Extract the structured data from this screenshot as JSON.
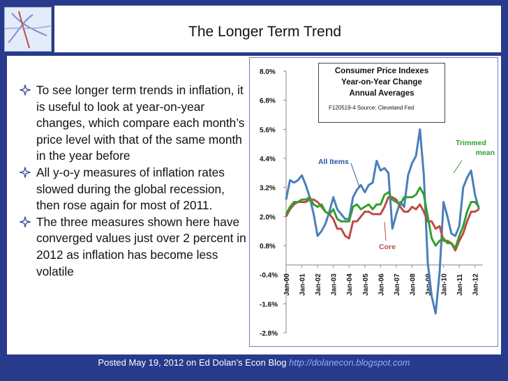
{
  "slide": {
    "title": "The Longer Term Trend",
    "bullets": [
      "To see longer term trends in inflation, it is useful to look at year-on-year changes, which compare each month’s price level with that of the same month in the year before",
      "All y-o-y measures of inflation rates slowed during the global recession, then rose again for most of 2011.",
      "The three measures shown here have converged values just over 2 percent in 2012 as inflation has become less volatile"
    ],
    "footer_text": "Posted May 19, 2012 on Ed Dolan’s Econ Blog",
    "footer_link": "http://dolanecon.blogspot.com"
  },
  "chart_data": {
    "type": "line",
    "title_lines": [
      "Consumer Price Indexes",
      "Year-on-Year Change",
      "Annual Averages"
    ],
    "source": "F120519-4 Source: Cleveland Fed",
    "y_ticks": [
      "8.0%",
      "6.8%",
      "5.6%",
      "4.4%",
      "3.2%",
      "2.0%",
      "0.8%",
      "-0.4%",
      "-1.6%",
      "-2.8%"
    ],
    "ylim": [
      -2.8,
      8.0
    ],
    "x_ticks": [
      "Jan-00",
      "Jan-01",
      "Jan-02",
      "Jan-03",
      "Jan-04",
      "Jan-05",
      "Jan-06",
      "Jan-07",
      "Jan-08",
      "Jan-09",
      "Jan-10",
      "Jan-11",
      "Jan-12"
    ],
    "series_labels": {
      "all_items": "All Items",
      "core": "Core",
      "trimmed_mean": [
        "Trimmed",
        "mean"
      ]
    },
    "series": [
      {
        "name": "All Items",
        "color": "#4a7ebb",
        "x": [
          2000.0,
          2000.25,
          2000.5,
          2000.75,
          2001.0,
          2001.25,
          2001.5,
          2001.75,
          2002.0,
          2002.25,
          2002.5,
          2002.75,
          2003.0,
          2003.25,
          2003.5,
          2003.75,
          2004.0,
          2004.25,
          2004.5,
          2004.75,
          2005.0,
          2005.25,
          2005.5,
          2005.75,
          2006.0,
          2006.25,
          2006.5,
          2006.75,
          2007.0,
          2007.25,
          2007.5,
          2007.75,
          2008.0,
          2008.25,
          2008.5,
          2008.75,
          2009.0,
          2009.25,
          2009.5,
          2009.75,
          2010.0,
          2010.25,
          2010.5,
          2010.75,
          2011.0,
          2011.25,
          2011.5,
          2011.75,
          2012.0,
          2012.25
        ],
        "values": [
          2.7,
          3.5,
          3.4,
          3.5,
          3.7,
          3.3,
          2.8,
          2.1,
          1.2,
          1.4,
          1.7,
          2.2,
          2.8,
          2.3,
          2.1,
          1.9,
          1.9,
          2.8,
          3.1,
          3.3,
          3.0,
          3.3,
          3.4,
          4.3,
          3.9,
          4.0,
          3.8,
          1.5,
          2.1,
          2.6,
          2.4,
          3.7,
          4.2,
          4.5,
          5.6,
          3.7,
          0.1,
          -1.3,
          -2.0,
          -0.3,
          2.6,
          2.0,
          1.3,
          1.2,
          1.6,
          3.2,
          3.6,
          3.9,
          2.9,
          2.3
        ]
      },
      {
        "name": "Core",
        "color": "#be4b48",
        "x": [
          2000.0,
          2000.25,
          2000.5,
          2000.75,
          2001.0,
          2001.25,
          2001.5,
          2001.75,
          2002.0,
          2002.25,
          2002.5,
          2002.75,
          2003.0,
          2003.25,
          2003.5,
          2003.75,
          2004.0,
          2004.25,
          2004.5,
          2004.75,
          2005.0,
          2005.25,
          2005.5,
          2005.75,
          2006.0,
          2006.25,
          2006.5,
          2006.75,
          2007.0,
          2007.25,
          2007.5,
          2007.75,
          2008.0,
          2008.25,
          2008.5,
          2008.75,
          2009.0,
          2009.25,
          2009.5,
          2009.75,
          2010.0,
          2010.25,
          2010.5,
          2010.75,
          2011.0,
          2011.25,
          2011.5,
          2011.75,
          2012.0,
          2012.25
        ],
        "values": [
          2.0,
          2.3,
          2.5,
          2.6,
          2.6,
          2.6,
          2.7,
          2.7,
          2.6,
          2.4,
          2.2,
          2.1,
          1.9,
          1.5,
          1.5,
          1.2,
          1.1,
          1.8,
          1.8,
          2.0,
          2.2,
          2.2,
          2.1,
          2.1,
          2.1,
          2.4,
          2.8,
          2.8,
          2.7,
          2.4,
          2.2,
          2.2,
          2.4,
          2.3,
          2.5,
          2.2,
          1.8,
          1.8,
          1.5,
          1.6,
          1.0,
          1.0,
          0.9,
          0.6,
          1.0,
          1.3,
          1.8,
          2.2,
          2.2,
          2.3
        ]
      },
      {
        "name": "Trimmed mean",
        "color": "#30a030",
        "x": [
          2000.0,
          2000.25,
          2000.5,
          2000.75,
          2001.0,
          2001.25,
          2001.5,
          2001.75,
          2002.0,
          2002.25,
          2002.5,
          2002.75,
          2003.0,
          2003.25,
          2003.5,
          2003.75,
          2004.0,
          2004.25,
          2004.5,
          2004.75,
          2005.0,
          2005.25,
          2005.5,
          2005.75,
          2006.0,
          2006.25,
          2006.5,
          2006.75,
          2007.0,
          2007.25,
          2007.5,
          2007.75,
          2008.0,
          2008.25,
          2008.5,
          2008.75,
          2009.0,
          2009.25,
          2009.5,
          2009.75,
          2010.0,
          2010.25,
          2010.5,
          2010.75,
          2011.0,
          2011.25,
          2011.5,
          2011.75,
          2012.0,
          2012.25
        ],
        "values": [
          2.1,
          2.4,
          2.6,
          2.6,
          2.7,
          2.7,
          2.8,
          2.5,
          2.4,
          2.5,
          2.2,
          2.1,
          2.3,
          1.9,
          1.8,
          1.8,
          1.8,
          2.4,
          2.5,
          2.3,
          2.4,
          2.5,
          2.3,
          2.5,
          2.5,
          2.9,
          3.0,
          2.7,
          2.6,
          2.5,
          2.8,
          2.8,
          2.8,
          2.9,
          3.2,
          2.9,
          2.0,
          1.1,
          0.8,
          1.0,
          1.1,
          0.9,
          0.9,
          0.7,
          1.2,
          1.6,
          2.2,
          2.6,
          2.6,
          2.4
        ]
      }
    ]
  }
}
